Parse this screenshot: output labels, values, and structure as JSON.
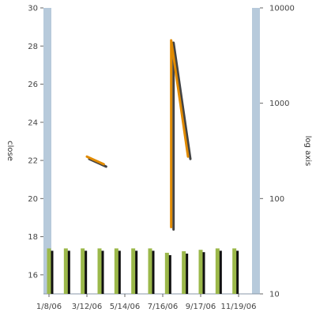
{
  "chart_data": {
    "type": "line",
    "ylabel_left": "close",
    "ylabel_right": "log axis",
    "ylim_left": [
      15,
      30
    ],
    "y_ticks_left": [
      "16",
      "18",
      "20",
      "22",
      "24",
      "26",
      "28",
      "30"
    ],
    "ylim_right": [
      10,
      10000
    ],
    "y_ticks_right": [
      "10",
      "100",
      "1000",
      "10000"
    ],
    "x_ticks": [
      "1/8/06",
      "3/12/06",
      "5/14/06",
      "7/16/06",
      "9/17/06",
      "11/19/06"
    ],
    "colors": {
      "line": "#e08a00",
      "bar": "#9bb84a",
      "axis_band": "#b7cadb"
    },
    "line_segments": [
      {
        "points": [
          {
            "x": "3/12/06",
            "y": 22.2
          },
          {
            "x": "4/9/06",
            "y": 21.8
          }
        ]
      },
      {
        "points": [
          {
            "x": "7/30/06",
            "y": 18.5
          },
          {
            "x": "7/30/06",
            "y": 28.3
          },
          {
            "x": "8/27/06",
            "y": 22.2
          }
        ]
      }
    ],
    "bars": [
      {
        "x": "1/8/06",
        "value": 30
      },
      {
        "x": "2/5/06",
        "value": 30
      },
      {
        "x": "3/5/06",
        "value": 30
      },
      {
        "x": "4/2/06",
        "value": 30
      },
      {
        "x": "4/30/06",
        "value": 30
      },
      {
        "x": "5/28/06",
        "value": 30
      },
      {
        "x": "6/25/06",
        "value": 30
      },
      {
        "x": "7/23/06",
        "value": 27
      },
      {
        "x": "8/20/06",
        "value": 28
      },
      {
        "x": "9/17/06",
        "value": 29
      },
      {
        "x": "10/15/06",
        "value": 30
      },
      {
        "x": "11/12/06",
        "value": 30
      }
    ]
  }
}
